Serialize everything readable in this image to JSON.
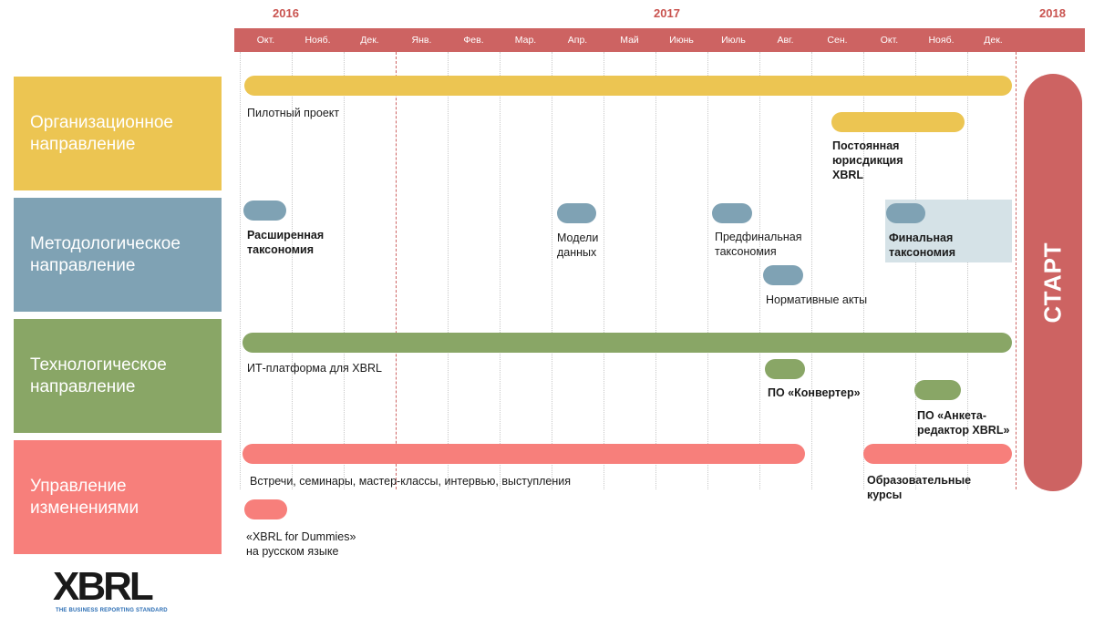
{
  "years": [
    "2016",
    "2017",
    "2018"
  ],
  "months": [
    "Окт.",
    "Нояб.",
    "Дек.",
    "Янв.",
    "Фев.",
    "Мар.",
    "Апр.",
    "Май",
    "Июнь",
    "Июль",
    "Авг.",
    "Сен.",
    "Окт.",
    "Нояб.",
    "Дек."
  ],
  "categories": [
    {
      "label": "Организационное\nнаправление",
      "color": "#ecc552"
    },
    {
      "label": "Методологическое\nнаправление",
      "color": "#7fa2b4"
    },
    {
      "label": "Технологическое\nнаправление",
      "color": "#89a666"
    },
    {
      "label": "Управление\nизменениями",
      "color": "#f77f7b"
    }
  ],
  "items": {
    "pilot": "Пилотный проект",
    "jurisdiction": "Постоянная\nюрисдикция\nXBRL",
    "extended_taxonomy": "Расширенная\nтаксономия",
    "data_models": "Модели\nданных",
    "prefinal_taxonomy": "Предфинальная\nтаксономия",
    "final_taxonomy": "Финальная\nтаксономия",
    "normative_acts": "Нормативные акты",
    "it_platform": "ИТ-платформа для XBRL",
    "converter": "ПО «Конвертер»",
    "survey_editor": "ПО «Анкета-\nредактор XBRL»",
    "meetings": "Встречи, семинары, мастер-классы, интервью, выступления",
    "courses": "Образовательные\nкурсы",
    "dummies": "«XBRL for Dummies»\nна русском языке"
  },
  "start_label": "СТАРТ",
  "logo": {
    "text": "XBRL",
    "tagline": "THE BUSINESS REPORTING STANDARD"
  }
}
